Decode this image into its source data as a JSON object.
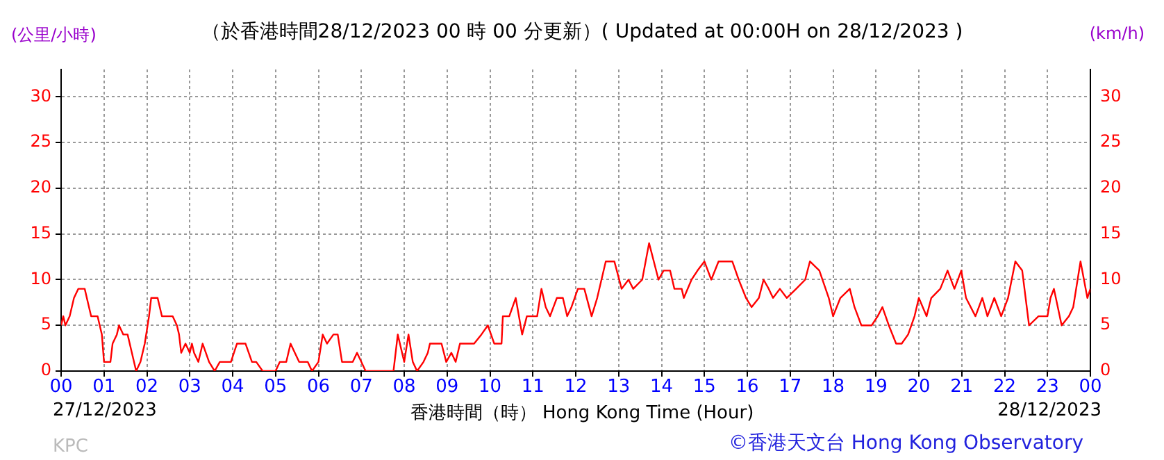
{
  "chart_data": {
    "type": "line",
    "title": "（於香港時間28/12/2023 00 時 00 分更新）( Updated at 00:00H on 28/12/2023 )",
    "ylabel": "(公里/小時)",
    "y2label": "(km/h)",
    "xlabel": "香港時間（時） Hong Kong Time (Hour)",
    "annotations": [
      "27/12/2023",
      "28/12/2023",
      "KPC",
      "©香港天文台 Hong Kong Observatory"
    ],
    "series": [
      {
        "color": "#ff0000",
        "x": [
          0,
          0.05,
          0.1,
          0.2,
          0.3,
          0.4,
          0.55,
          0.65,
          0.7,
          0.85,
          0.9,
          0.95,
          1.0,
          1.15,
          1.2,
          1.3,
          1.35,
          1.45,
          1.55,
          1.65,
          1.75,
          1.85,
          1.95,
          2.05,
          2.1,
          2.25,
          2.35,
          2.6,
          2.7,
          2.75,
          2.8,
          2.9,
          3.0,
          3.05,
          3.1,
          3.2,
          3.3,
          3.45,
          3.58,
          3.7,
          3.96,
          4.1,
          4.3,
          4.45,
          4.55,
          4.7,
          5.0,
          5.1,
          5.25,
          5.35,
          5.45,
          5.55,
          5.75,
          5.85,
          6.0,
          6.1,
          6.2,
          6.35,
          6.45,
          6.55,
          6.8,
          6.9,
          7.0,
          7.1,
          7.75,
          7.85,
          8.0,
          8.1,
          8.2,
          8.3,
          8.45,
          8.55,
          8.6,
          8.87,
          8.98,
          9.1,
          9.2,
          9.3,
          9.63,
          9.8,
          9.95,
          10.1,
          10.27,
          10.3,
          10.45,
          10.6,
          10.75,
          10.86,
          11.1,
          11.2,
          11.3,
          11.4,
          11.56,
          11.7,
          11.8,
          11.9,
          12.05,
          12.2,
          12.37,
          12.5,
          12.7,
          12.9,
          13.07,
          13.23,
          13.34,
          13.55,
          13.71,
          13.93,
          14.05,
          14.2,
          14.3,
          14.47,
          14.52,
          14.7,
          14.84,
          15.0,
          15.16,
          15.33,
          15.65,
          15.8,
          15.97,
          16.1,
          16.27,
          16.38,
          16.5,
          16.6,
          16.76,
          16.92,
          17.14,
          17.35,
          17.46,
          17.68,
          17.9,
          18.0,
          18.17,
          18.39,
          18.5,
          18.66,
          18.9,
          19.04,
          19.15,
          19.3,
          19.47,
          19.6,
          19.75,
          19.9,
          20.0,
          20.18,
          20.29,
          20.5,
          20.67,
          20.83,
          20.99,
          21.1,
          21.32,
          21.48,
          21.6,
          21.76,
          21.92,
          22.08,
          22.25,
          22.41,
          22.57,
          22.79,
          23.0,
          23.07,
          23.15,
          23.33,
          23.5,
          23.6,
          23.77,
          23.93,
          24.0
        ],
        "values": [
          5,
          6,
          5,
          6,
          8,
          9,
          9,
          7,
          6,
          6,
          5,
          4,
          1,
          1,
          3,
          4,
          5,
          4,
          4,
          2,
          0,
          1,
          3,
          6,
          8,
          8,
          6,
          6,
          5,
          4,
          2,
          3,
          2,
          3,
          2,
          1,
          3,
          1,
          0,
          1,
          1,
          3,
          3,
          1,
          1,
          0,
          0,
          1,
          1,
          3,
          2,
          1,
          1,
          0,
          1,
          4,
          3,
          4,
          4,
          1,
          1,
          2,
          1,
          0,
          0,
          4,
          1,
          4,
          1,
          0,
          1,
          2,
          3,
          3,
          1,
          2,
          1,
          3,
          3,
          4,
          5,
          3,
          3,
          6,
          6,
          8,
          4,
          6,
          6,
          9,
          7,
          6,
          8,
          8,
          6,
          7,
          9,
          9,
          6,
          8,
          12,
          12,
          9,
          10,
          9,
          10,
          14,
          10,
          11,
          11,
          9,
          9,
          8,
          10,
          11,
          12,
          10,
          12,
          12,
          10,
          8,
          7,
          8,
          10,
          9,
          8,
          9,
          8,
          9,
          10,
          12,
          11,
          8,
          6,
          8,
          9,
          7,
          5,
          5,
          6,
          7,
          5,
          3,
          3,
          4,
          6,
          8,
          6,
          8,
          9,
          11,
          9,
          11,
          8,
          6,
          8,
          6,
          8,
          6,
          8,
          12,
          11,
          5,
          6,
          6,
          8,
          9,
          5,
          6,
          7,
          12,
          8,
          9
        ]
      }
    ],
    "xlim": [
      0,
      24
    ],
    "xticks": [
      {
        "value": 0,
        "label": "00"
      },
      {
        "value": 1,
        "label": "01"
      },
      {
        "value": 2,
        "label": "02"
      },
      {
        "value": 3,
        "label": "03"
      },
      {
        "value": 4,
        "label": "04"
      },
      {
        "value": 5,
        "label": "05"
      },
      {
        "value": 6,
        "label": "06"
      },
      {
        "value": 7,
        "label": "07"
      },
      {
        "value": 8,
        "label": "08"
      },
      {
        "value": 9,
        "label": "09"
      },
      10,
      11,
      12,
      13,
      14,
      15,
      16,
      17,
      18,
      19,
      20,
      21,
      22,
      23,
      {
        "value": 24,
        "label": "00"
      }
    ],
    "ylim": [
      0,
      33
    ],
    "yticks": [
      0,
      5,
      10,
      15,
      20,
      25,
      30
    ],
    "y2lim": [
      0,
      33
    ],
    "y2ticks": [
      0,
      5,
      10,
      15,
      20,
      25,
      30
    ],
    "grid": true,
    "legend": false,
    "marker": "none",
    "line_style": "solid"
  }
}
